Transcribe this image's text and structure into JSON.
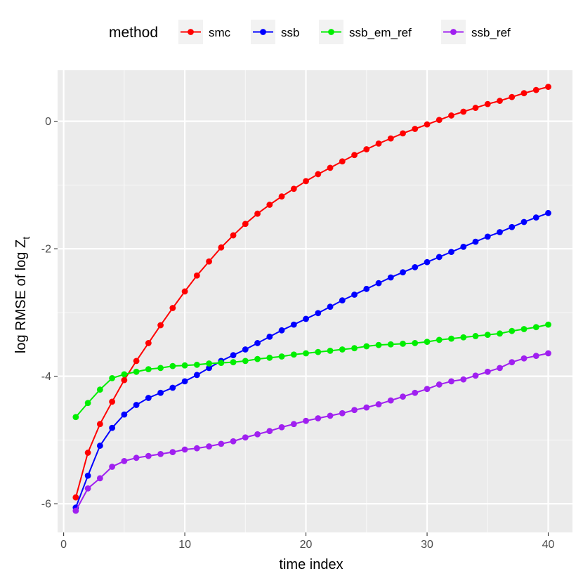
{
  "chart_data": {
    "type": "line",
    "xlabel": "time index",
    "ylabel_main": "log RMSE of log Z",
    "ylabel_sub": "t",
    "xlim": [
      -0.5,
      42
    ],
    "ylim": [
      -6.45,
      0.8
    ],
    "x_ticks": [
      0,
      10,
      20,
      30,
      40
    ],
    "x_tick_labels": [
      "0",
      "10",
      "20",
      "30",
      "40"
    ],
    "y_ticks": [
      -6,
      -4,
      -2,
      0
    ],
    "y_tick_labels": [
      "-6",
      "-4",
      "-2",
      "0"
    ],
    "grid": true,
    "legend": {
      "title": "method",
      "position": "top"
    },
    "x": [
      1,
      2,
      3,
      4,
      5,
      6,
      7,
      8,
      9,
      10,
      11,
      12,
      13,
      14,
      15,
      16,
      17,
      18,
      19,
      20,
      21,
      22,
      23,
      24,
      25,
      26,
      27,
      28,
      29,
      30,
      31,
      32,
      33,
      34,
      35,
      36,
      37,
      38,
      39,
      40
    ],
    "series": [
      {
        "name": "smc",
        "color": "#ff0000",
        "values": [
          -5.9,
          -5.2,
          -4.75,
          -4.4,
          -4.06,
          -3.76,
          -3.48,
          -3.2,
          -2.93,
          -2.67,
          -2.42,
          -2.2,
          -1.98,
          -1.79,
          -1.61,
          -1.45,
          -1.31,
          -1.18,
          -1.06,
          -0.94,
          -0.83,
          -0.73,
          -0.63,
          -0.53,
          -0.44,
          -0.35,
          -0.27,
          -0.19,
          -0.12,
          -0.05,
          0.02,
          0.09,
          0.15,
          0.21,
          0.27,
          0.32,
          0.38,
          0.44,
          0.49,
          0.54
        ]
      },
      {
        "name": "ssb",
        "color": "#0000ff",
        "values": [
          -6.06,
          -5.56,
          -5.09,
          -4.81,
          -4.6,
          -4.45,
          -4.34,
          -4.26,
          -4.18,
          -4.08,
          -3.98,
          -3.87,
          -3.76,
          -3.67,
          -3.58,
          -3.48,
          -3.38,
          -3.28,
          -3.19,
          -3.1,
          -3.01,
          -2.91,
          -2.81,
          -2.72,
          -2.63,
          -2.54,
          -2.45,
          -2.37,
          -2.29,
          -2.21,
          -2.13,
          -2.05,
          -1.97,
          -1.89,
          -1.81,
          -1.74,
          -1.66,
          -1.58,
          -1.51,
          -1.44
        ]
      },
      {
        "name": "ssb_em_ref",
        "color": "#00ee00",
        "values": [
          -4.64,
          -4.42,
          -4.21,
          -4.03,
          -3.97,
          -3.93,
          -3.89,
          -3.87,
          -3.84,
          -3.83,
          -3.82,
          -3.8,
          -3.79,
          -3.78,
          -3.76,
          -3.73,
          -3.71,
          -3.69,
          -3.66,
          -3.64,
          -3.62,
          -3.6,
          -3.58,
          -3.56,
          -3.53,
          -3.51,
          -3.5,
          -3.49,
          -3.48,
          -3.46,
          -3.43,
          -3.41,
          -3.39,
          -3.37,
          -3.35,
          -3.33,
          -3.29,
          -3.26,
          -3.23,
          -3.19
        ]
      },
      {
        "name": "ssb_ref",
        "color": "#a020f0",
        "values": [
          -6.11,
          -5.76,
          -5.6,
          -5.42,
          -5.33,
          -5.28,
          -5.25,
          -5.22,
          -5.19,
          -5.15,
          -5.13,
          -5.1,
          -5.06,
          -5.02,
          -4.96,
          -4.91,
          -4.86,
          -4.8,
          -4.75,
          -4.7,
          -4.66,
          -4.62,
          -4.58,
          -4.53,
          -4.49,
          -4.44,
          -4.38,
          -4.32,
          -4.26,
          -4.2,
          -4.13,
          -4.08,
          -4.05,
          -3.99,
          -3.93,
          -3.87,
          -3.78,
          -3.72,
          -3.68,
          -3.64
        ]
      }
    ]
  }
}
